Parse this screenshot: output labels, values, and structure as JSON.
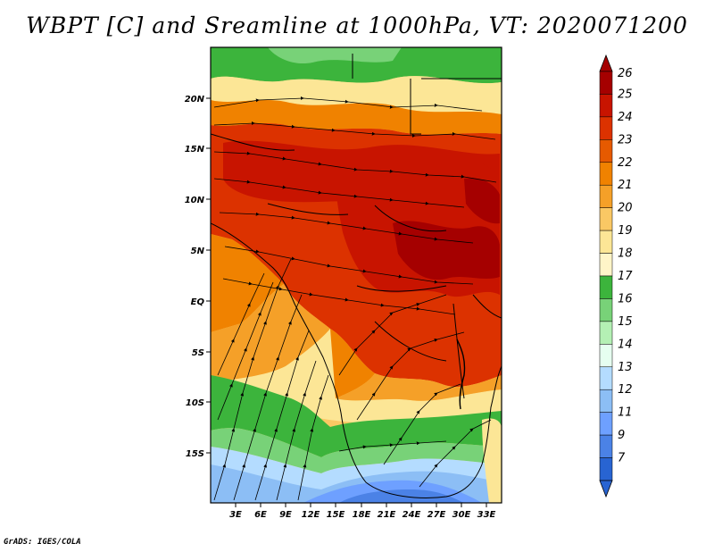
{
  "title": "WBPT [C] and Sreamline at 1000hPa, VT: 2020071200",
  "credit": "GrADS: IGES/COLA",
  "map": {
    "lat_labels": [
      "20N",
      "15N",
      "10N",
      "5N",
      "EQ",
      "5S",
      "10S",
      "15S"
    ],
    "lon_labels": [
      "3E",
      "6E",
      "9E",
      "12E",
      "15E",
      "18E",
      "21E",
      "24E",
      "27E",
      "30E",
      "33E"
    ]
  },
  "colorbar": {
    "labels": [
      "26",
      "25",
      "24",
      "23",
      "22",
      "21",
      "20",
      "19",
      "18",
      "17",
      "16",
      "15",
      "14",
      "13",
      "12",
      "11",
      "9",
      "7"
    ],
    "colors": [
      "#a50000",
      "#c81400",
      "#dc3200",
      "#e65a00",
      "#f08200",
      "#f5a028",
      "#fac864",
      "#fce696",
      "#fff5c8",
      "#3cb43c",
      "#78d278",
      "#b4f0b4",
      "#e6fff0",
      "#b4dcff",
      "#8cbef5",
      "#6ea0ff",
      "#4b82e6",
      "#2864d2"
    ]
  }
}
